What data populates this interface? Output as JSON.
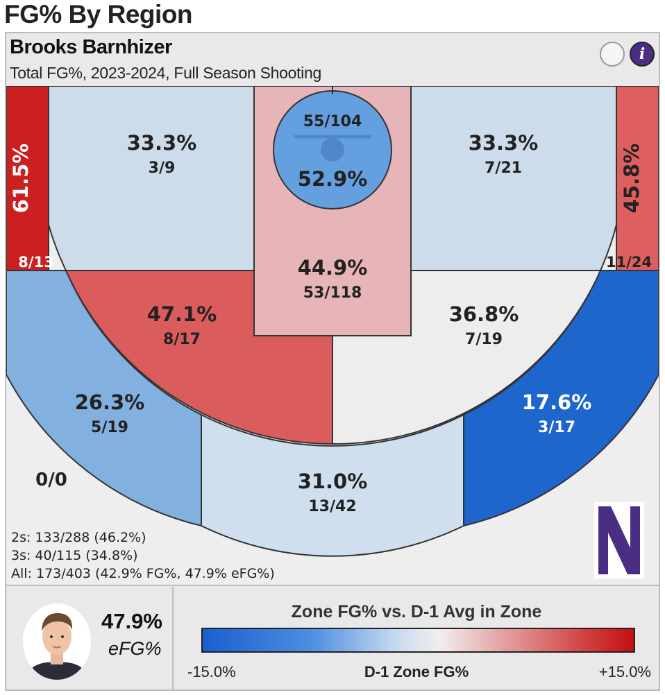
{
  "page_title": "FG% By Region",
  "player": {
    "name": "Brooks Barnhizer",
    "subtitle": "Total FG%, 2023-2024, Full Season Shooting",
    "efg_value": "47.9%",
    "efg_label": "eFG%"
  },
  "info_icon": "i",
  "summary": {
    "twos": "2s: 133/288 (46.2%)",
    "threes": "3s: 40/115 (34.8%)",
    "all": "All: 173/403 (42.9% FG%, 47.9% eFG%)"
  },
  "legend": {
    "title": "Zone FG% vs. D-1 Avg in Zone",
    "min_label": "-15.0%",
    "mid_label": "D-1 Zone FG%",
    "max_label": "+15.0%",
    "colors": [
      "#1a5fd0",
      "#c8daf0",
      "#f1eeee",
      "#d24545",
      "#c40f0f"
    ]
  },
  "team_logo": "N",
  "chart_data": {
    "type": "heatmap",
    "title": "FG% By Region",
    "zones": [
      {
        "zone": "left-corner-3",
        "pct": "61.5%",
        "made_att": "8/13",
        "color": "#cc1f1f"
      },
      {
        "zone": "left-baseline-mid",
        "pct": "33.3%",
        "made_att": "3/9",
        "color": "#ccdcea"
      },
      {
        "zone": "restricted-area",
        "pct": "52.9%",
        "made_att": "55/104",
        "color": "#64a0e0"
      },
      {
        "zone": "paint",
        "pct": "44.9%",
        "made_att": "53/118",
        "color": "#e7b5b8"
      },
      {
        "zone": "right-baseline-mid",
        "pct": "33.3%",
        "made_att": "7/21",
        "color": "#ccdcea"
      },
      {
        "zone": "right-corner-3",
        "pct": "45.8%",
        "made_att": "11/24",
        "color": "#de5f5f"
      },
      {
        "zone": "left-elbow-mid",
        "pct": "47.1%",
        "made_att": "8/17",
        "color": "#db5c5c"
      },
      {
        "zone": "right-elbow-mid",
        "pct": "36.8%",
        "made_att": "7/19",
        "color": "#ededed"
      },
      {
        "zone": "left-wing-3",
        "pct": "26.3%",
        "made_att": "5/19",
        "color": "#82b1e0"
      },
      {
        "zone": "top-key-3",
        "pct": "31.0%",
        "made_att": "13/42",
        "color": "#cfdfed"
      },
      {
        "zone": "right-wing-3",
        "pct": "17.6%",
        "made_att": "3/17",
        "color": "#1f66cc"
      },
      {
        "zone": "backcourt",
        "made_att": "0/0",
        "color": "#eeeeee"
      }
    ],
    "scale": {
      "min": -15.0,
      "max": 15.0,
      "unit": "% vs D-1 avg"
    }
  }
}
